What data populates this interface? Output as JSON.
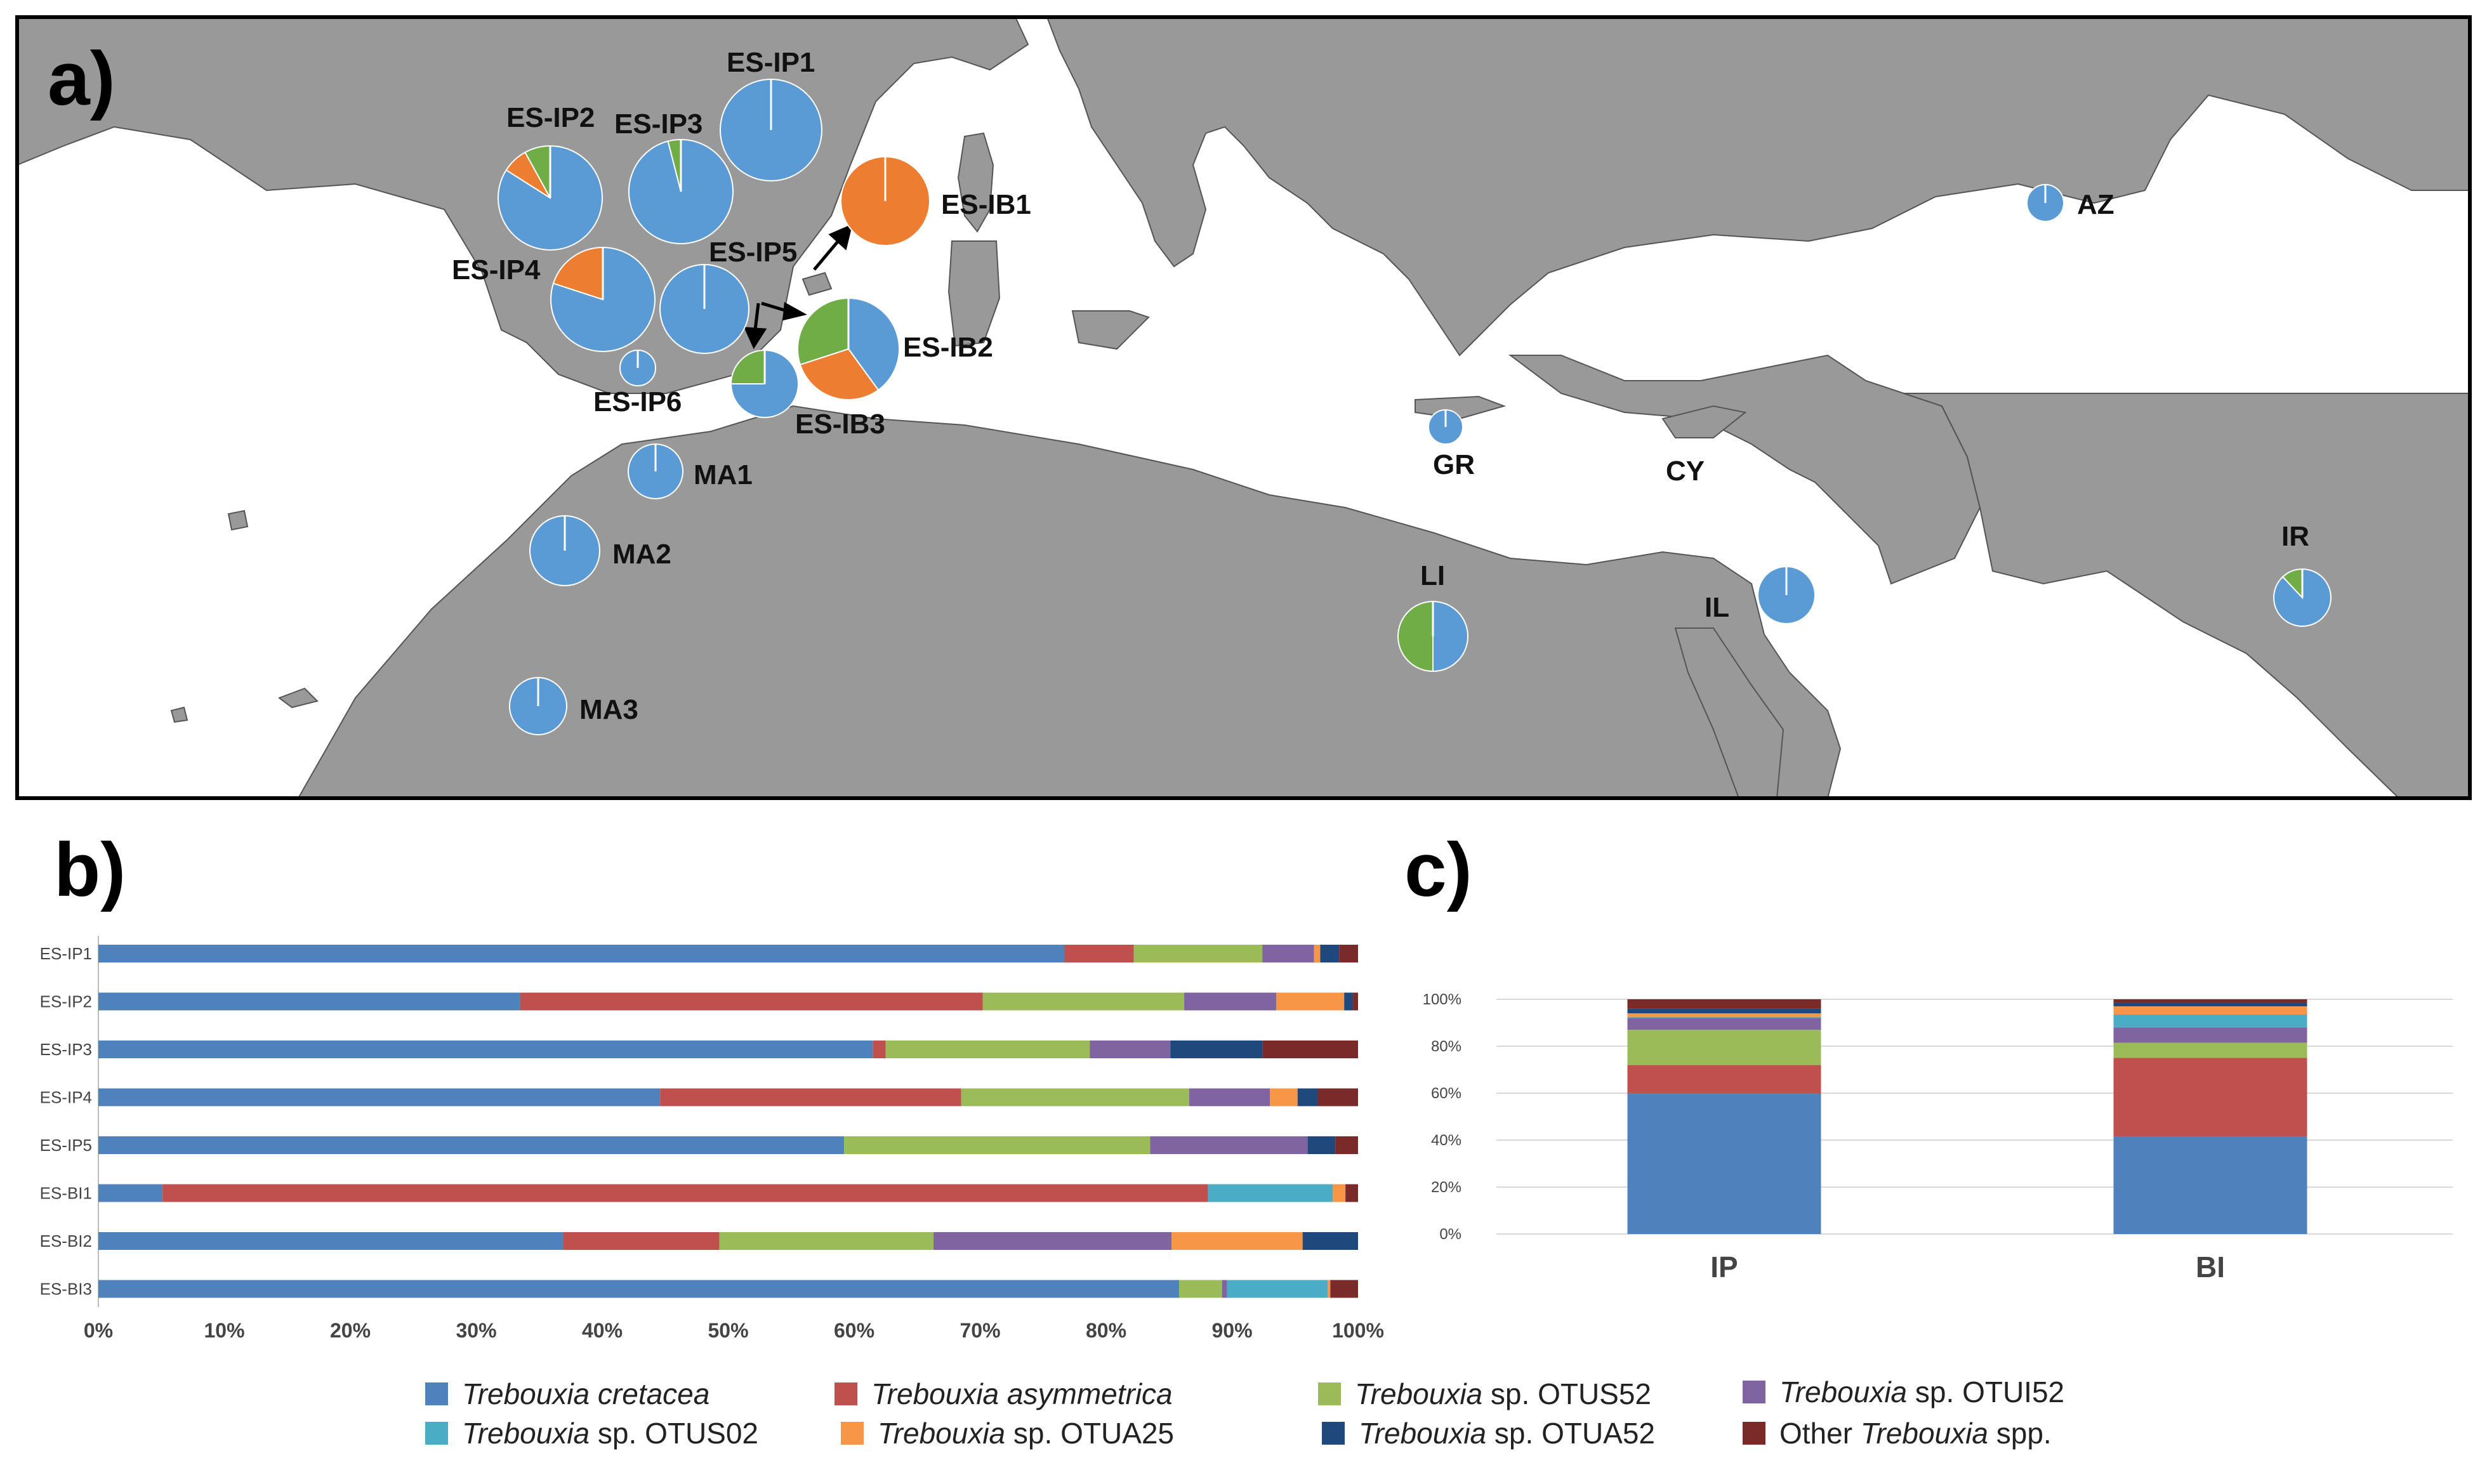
{
  "panels": {
    "a": "a)",
    "b": "b)",
    "c": "c)"
  },
  "colors": {
    "cretacea": "#4f81bd",
    "asymmetrica": "#c0504d",
    "OTUS52": "#9bbb59",
    "OTUI52": "#8064a2",
    "OTUS02": "#4bacc6",
    "OTUA25": "#f79646",
    "OTUA52": "#1f497d",
    "other": "#7b2a2a",
    "pie_blue": "#5b9bd5",
    "pie_orange": "#ed7d31",
    "pie_green": "#70ad47",
    "land": "#999999",
    "sea": "#ffffff"
  },
  "map": {
    "sites": [
      {
        "id": "ES-IP1",
        "label": "ES-IP1",
        "slices": [
          {
            "c": "pie_blue",
            "v": 100
          }
        ]
      },
      {
        "id": "ES-IP2",
        "label": "ES-IP2",
        "slices": [
          {
            "c": "pie_blue",
            "v": 84
          },
          {
            "c": "pie_orange",
            "v": 8
          },
          {
            "c": "pie_green",
            "v": 8
          }
        ]
      },
      {
        "id": "ES-IP3",
        "label": "ES-IP3",
        "slices": [
          {
            "c": "pie_blue",
            "v": 96
          },
          {
            "c": "pie_green",
            "v": 4
          }
        ]
      },
      {
        "id": "ES-IP4",
        "label": "ES-IP4",
        "slices": [
          {
            "c": "pie_blue",
            "v": 80
          },
          {
            "c": "pie_orange",
            "v": 20
          }
        ]
      },
      {
        "id": "ES-IP5",
        "label": "ES-IP5",
        "slices": [
          {
            "c": "pie_blue",
            "v": 100
          }
        ]
      },
      {
        "id": "ES-IP6",
        "label": "ES-IP6",
        "slices": [
          {
            "c": "pie_blue",
            "v": 100
          }
        ]
      },
      {
        "id": "ES-IB1",
        "label": "ES-IB1",
        "slices": [
          {
            "c": "pie_orange",
            "v": 100
          }
        ]
      },
      {
        "id": "ES-IB2",
        "label": "ES-IB2",
        "slices": [
          {
            "c": "pie_blue",
            "v": 40
          },
          {
            "c": "pie_orange",
            "v": 30
          },
          {
            "c": "pie_green",
            "v": 30
          }
        ]
      },
      {
        "id": "ES-IB3",
        "label": "ES-IB3",
        "slices": [
          {
            "c": "pie_blue",
            "v": 75
          },
          {
            "c": "pie_green",
            "v": 25
          }
        ]
      },
      {
        "id": "MA1",
        "label": "MA1",
        "slices": [
          {
            "c": "pie_blue",
            "v": 100
          }
        ]
      },
      {
        "id": "MA2",
        "label": "MA2",
        "slices": [
          {
            "c": "pie_blue",
            "v": 100
          }
        ]
      },
      {
        "id": "MA3",
        "label": "MA3",
        "slices": [
          {
            "c": "pie_blue",
            "v": 100
          }
        ]
      },
      {
        "id": "GR",
        "label": "GR",
        "slices": [
          {
            "c": "pie_blue",
            "v": 100
          }
        ]
      },
      {
        "id": "CY",
        "label": "CY",
        "slices": []
      },
      {
        "id": "LI",
        "label": "LI",
        "slices": [
          {
            "c": "pie_blue",
            "v": 50
          },
          {
            "c": "pie_green",
            "v": 50
          }
        ]
      },
      {
        "id": "IL",
        "label": "IL",
        "slices": [
          {
            "c": "pie_blue",
            "v": 100
          }
        ]
      },
      {
        "id": "AZ",
        "label": "AZ",
        "slices": [
          {
            "c": "pie_blue",
            "v": 100
          }
        ]
      },
      {
        "id": "IR",
        "label": "IR",
        "slices": [
          {
            "c": "pie_blue",
            "v": 88
          },
          {
            "c": "pie_green",
            "v": 12
          }
        ]
      }
    ]
  },
  "chart_data": [
    {
      "type": "bar",
      "orientation": "horizontal",
      "stacked": true,
      "panel": "b)",
      "categories": [
        "ES-IP1",
        "ES-IP2",
        "ES-IP3",
        "ES-IP4",
        "ES-IP5",
        "ES-BI1",
        "ES-BI2",
        "ES-BI3"
      ],
      "xlim": [
        0,
        100
      ],
      "xticks": [
        "0%",
        "10%",
        "20%",
        "30%",
        "40%",
        "50%",
        "60%",
        "70%",
        "80%",
        "90%",
        "100%"
      ],
      "series": [
        {
          "name": "Trebouxia cretacea",
          "key": "cretacea",
          "values": [
            76.7,
            33.5,
            61.5,
            44.6,
            59.2,
            5.1,
            36.9,
            85.8
          ]
        },
        {
          "name": "Trebouxia asymmetrica",
          "key": "asymmetrica",
          "values": [
            5.5,
            36.7,
            1.0,
            23.9,
            0,
            83.0,
            12.4,
            0
          ]
        },
        {
          "name": "Trebouxia sp. OTUS52",
          "key": "OTUS52",
          "values": [
            10.2,
            16.0,
            16.2,
            18.1,
            24.3,
            0,
            17.0,
            3.4
          ]
        },
        {
          "name": "Trebouxia sp. OTUI52",
          "key": "OTUI52",
          "values": [
            4.1,
            7.3,
            6.4,
            6.4,
            12.5,
            0,
            18.9,
            0.4
          ]
        },
        {
          "name": "Trebouxia sp. OTUS02",
          "key": "OTUS02",
          "values": [
            0,
            0,
            0,
            0,
            0,
            9.9,
            0,
            8.0
          ]
        },
        {
          "name": "Trebouxia sp. OTUA25",
          "key": "OTUA25",
          "values": [
            0.5,
            5.4,
            0,
            2.2,
            0,
            1.0,
            10.4,
            0.2
          ]
        },
        {
          "name": "Trebouxia sp. OTUA52",
          "key": "OTUA52",
          "values": [
            1.5,
            0.7,
            7.3,
            1.6,
            2.2,
            0,
            4.4,
            0
          ]
        },
        {
          "name": "Other Trebouxia spp.",
          "key": "other",
          "values": [
            1.5,
            0.4,
            7.6,
            3.2,
            1.8,
            1.0,
            0,
            2.2
          ]
        }
      ],
      "legend": "bottom"
    },
    {
      "type": "bar",
      "orientation": "vertical",
      "stacked": true,
      "panel": "c)",
      "categories": [
        "IP",
        "BI"
      ],
      "ylim": [
        0,
        100
      ],
      "yticks": [
        "0%",
        "20%",
        "40%",
        "60%",
        "80%",
        "100%"
      ],
      "grid": true,
      "series": [
        {
          "name": "Trebouxia cretacea",
          "key": "cretacea",
          "values": [
            60.0,
            41.5
          ]
        },
        {
          "name": "Trebouxia asymmetrica",
          "key": "asymmetrica",
          "values": [
            12.0,
            33.5
          ]
        },
        {
          "name": "Trebouxia sp. OTUS52",
          "key": "OTUS52",
          "values": [
            15.0,
            6.5
          ]
        },
        {
          "name": "Trebouxia sp. OTUI52",
          "key": "OTUI52",
          "values": [
            5.0,
            6.5
          ]
        },
        {
          "name": "Trebouxia sp. OTUS02",
          "key": "OTUS02",
          "values": [
            0.5,
            5.5
          ]
        },
        {
          "name": "Trebouxia sp. OTUA25",
          "key": "OTUA25",
          "values": [
            1.5,
            3.5
          ]
        },
        {
          "name": "Trebouxia sp. OTUA52",
          "key": "OTUA52",
          "values": [
            2.0,
            1.5
          ]
        },
        {
          "name": "Other Trebouxia spp.",
          "key": "other",
          "values": [
            4.0,
            1.5
          ]
        }
      ]
    }
  ],
  "legend": [
    {
      "key": "cretacea",
      "genus": "Trebouxia",
      "rest": " cretacea",
      "rest_italic": true
    },
    {
      "key": "asymmetrica",
      "genus": "Trebouxia",
      "rest": " asymmetrica",
      "rest_italic": true
    },
    {
      "key": "OTUS52",
      "genus": "Trebouxia",
      "rest": " sp. OTUS52",
      "rest_italic": false
    },
    {
      "key": "OTUI52",
      "genus": "Trebouxia",
      "rest": " sp. OTUI52",
      "rest_italic": false
    },
    {
      "key": "OTUS02",
      "genus": "Trebouxia",
      "rest": " sp. OTUS02",
      "rest_italic": false
    },
    {
      "key": "OTUA25",
      "genus": "Trebouxia",
      "rest": " sp. OTUA25",
      "rest_italic": false
    },
    {
      "key": "OTUA52",
      "genus": "Trebouxia",
      "rest": " sp. OTUA52",
      "rest_italic": false
    },
    {
      "key": "other",
      "pre": "Other ",
      "genus": "Trebouxia",
      "rest": " spp.",
      "rest_italic": false
    }
  ]
}
